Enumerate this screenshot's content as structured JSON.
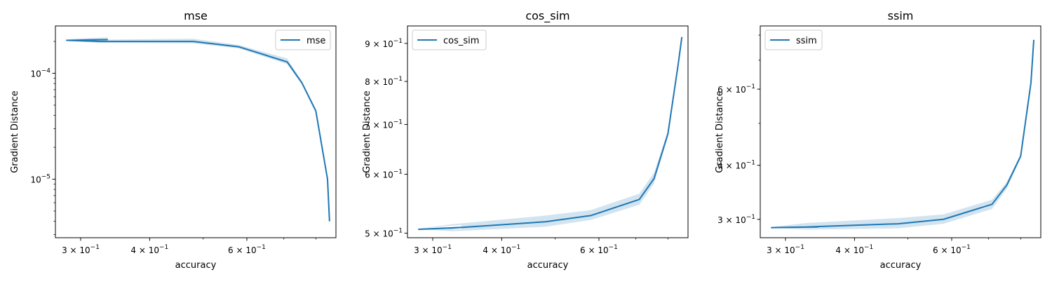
{
  "figure": {
    "line_color": "#1f77b4",
    "band_color": "#1f77b4",
    "band_opacity": 0.2
  },
  "chart_data": [
    {
      "type": "line",
      "title": "mse",
      "xlabel": "accuracy",
      "ylabel": "Gradient Distance",
      "xscale": "log",
      "yscale": "log",
      "xlim": [
        0.27,
        0.87
      ],
      "ylim": [
        2.8e-06,
        0.00028
      ],
      "xticks": [
        {
          "value": 0.3,
          "base": "3 × 10",
          "exp": "−1"
        },
        {
          "value": 0.4,
          "base": "4 × 10",
          "exp": "−1"
        },
        {
          "value": 0.6,
          "base": "6 × 10",
          "exp": "−1"
        }
      ],
      "yticks": [
        {
          "value": 0.0001,
          "base": "10",
          "exp": "−4"
        },
        {
          "value": 1e-05,
          "base": "10",
          "exp": "−5"
        }
      ],
      "legend": {
        "position": "upper right",
        "label": "mse"
      },
      "grid": false,
      "series": [
        {
          "name": "mse",
          "x": [
            0.336,
            0.283,
            0.325,
            0.48,
            0.58,
            0.71,
            0.755,
            0.8,
            0.84,
            0.847
          ],
          "y": [
            0.000208,
            0.000205,
            0.0002,
            0.0002,
            0.000178,
            0.000128,
            8.11e-05,
            4.41e-05,
            1e-05,
            4e-06
          ],
          "y_low": [
            0.000204,
            0.000203,
            0.000194,
            0.000192,
            0.000172,
            0.000122,
            7.85e-05,
            4.25e-05,
            9.8e-06,
            4e-06
          ],
          "y_high": [
            0.000218,
            0.000213,
            0.000208,
            0.000212,
            0.000185,
            0.000138,
            8.41e-05,
            4.62e-05,
            1.02e-05,
            4e-06
          ]
        }
      ]
    },
    {
      "type": "line",
      "title": "cos_sim",
      "xlabel": "accuracy",
      "ylabel": "Gradient Distance",
      "xscale": "log",
      "yscale": "log",
      "xlim": [
        0.27,
        0.87
      ],
      "ylim": [
        0.493,
        0.95
      ],
      "xticks": [
        {
          "value": 0.3,
          "base": "3 × 10",
          "exp": "−1"
        },
        {
          "value": 0.4,
          "base": "4 × 10",
          "exp": "−1"
        },
        {
          "value": 0.6,
          "base": "6 × 10",
          "exp": "−1"
        }
      ],
      "yticks": [
        {
          "value": 0.5,
          "base": "5 × 10",
          "exp": "−1"
        },
        {
          "value": 0.6,
          "base": "6 × 10",
          "exp": "−1"
        },
        {
          "value": 0.7,
          "base": "7 × 10",
          "exp": "−1"
        },
        {
          "value": 0.8,
          "base": "8 × 10",
          "exp": "−1"
        },
        {
          "value": 0.9,
          "base": "9 × 10",
          "exp": "−1"
        }
      ],
      "legend": {
        "position": "upper left",
        "label": "cos_sim"
      },
      "grid": false,
      "series": [
        {
          "name": "cos_sim",
          "x": [
            0.338,
            0.283,
            0.325,
            0.48,
            0.58,
            0.71,
            0.755,
            0.8,
            0.835,
            0.848
          ],
          "y": [
            0.509,
            0.506,
            0.508,
            0.518,
            0.528,
            0.555,
            0.592,
            0.68,
            0.843,
            0.918
          ],
          "y_low": [
            0.506,
            0.506,
            0.503,
            0.51,
            0.521,
            0.546,
            0.583,
            0.674,
            0.84,
            0.918
          ],
          "y_high": [
            0.513,
            0.507,
            0.514,
            0.528,
            0.537,
            0.565,
            0.603,
            0.686,
            0.846,
            0.918
          ]
        }
      ]
    },
    {
      "type": "line",
      "title": "ssim",
      "xlabel": "accuracy",
      "ylabel": "Gradient Distance",
      "xscale": "log",
      "yscale": "log",
      "xlim": [
        0.27,
        0.87
      ],
      "ylim": [
        0.272,
        0.84
      ],
      "xticks": [
        {
          "value": 0.3,
          "base": "3 × 10",
          "exp": "−1"
        },
        {
          "value": 0.4,
          "base": "4 × 10",
          "exp": "−1"
        },
        {
          "value": 0.6,
          "base": "6 × 10",
          "exp": "−1"
        }
      ],
      "yticks": [
        {
          "value": 0.3,
          "base": "3 × 10",
          "exp": "−1"
        },
        {
          "value": 0.4,
          "base": "4 × 10",
          "exp": "−1"
        },
        {
          "value": 0.6,
          "base": "6 × 10",
          "exp": "−1"
        }
      ],
      "legend": {
        "position": "upper left",
        "label": "ssim"
      },
      "grid": false,
      "series": [
        {
          "name": "ssim",
          "x": [
            0.344,
            0.283,
            0.325,
            0.48,
            0.58,
            0.71,
            0.755,
            0.8,
            0.835,
            0.845
          ],
          "y": [
            0.288,
            0.287,
            0.288,
            0.293,
            0.3,
            0.325,
            0.36,
            0.42,
            0.62,
            0.78
          ],
          "y_low": [
            0.286,
            0.287,
            0.284,
            0.286,
            0.293,
            0.317,
            0.353,
            0.416,
            0.618,
            0.78
          ],
          "y_high": [
            0.29,
            0.288,
            0.294,
            0.302,
            0.308,
            0.333,
            0.366,
            0.425,
            0.622,
            0.78
          ]
        }
      ]
    }
  ]
}
